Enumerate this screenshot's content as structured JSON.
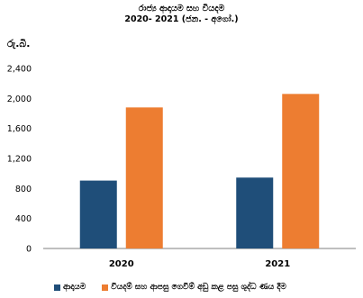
{
  "chart_data": {
    "type": "bar",
    "title": "රාජ්‍ය ආදායම සහ වියදම",
    "subtitle": "2020- 2021 (ජන. - අගෝ.)",
    "ylabel": "රු.බි.",
    "categories": [
      "2020",
      "2021"
    ],
    "ylim": [
      0,
      2400
    ],
    "yticks": [
      0,
      400,
      800,
      1200,
      1600,
      2000,
      2400
    ],
    "ytick_labels": [
      "0",
      "400",
      "800",
      "1,200",
      "1,600",
      "2,000",
      "2,400"
    ],
    "series": [
      {
        "name": "ආදායම",
        "color": "#1f4e79",
        "values": [
          905,
          945
        ]
      },
      {
        "name": "වියදම් සහ ආපසු ගෙවීම් අඩු කළ පසු ශුද්ධ ණය දීම",
        "color": "#ed7d31",
        "values": [
          1880,
          2060
        ]
      }
    ],
    "grid": false,
    "legend_position": "bottom"
  }
}
